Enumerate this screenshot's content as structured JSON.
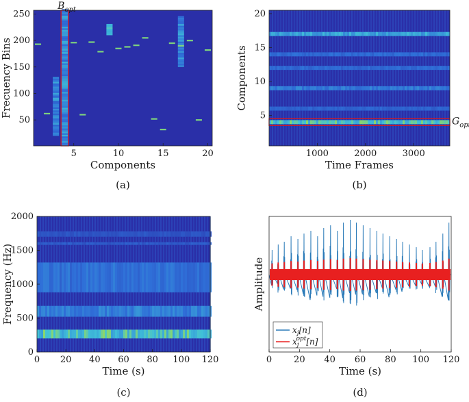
{
  "colors": {
    "heat_bg": "#2a2fa8",
    "heat_mid": "#2f6fd8",
    "heat_hot": "#40c0d8",
    "heat_peak": "#a8e040",
    "highlight": "#e01818",
    "signal_blue": "#2a7ab8",
    "signal_red": "#e82020"
  },
  "chart_data": [
    {
      "type": "heatmap",
      "panel_caption": "(a)",
      "xlabel": "Components",
      "ylabel": "Frecuency Bins",
      "xlim": [
        0.5,
        20.5
      ],
      "ylim": [
        1,
        257
      ],
      "xticks": [
        "5",
        "10",
        "15",
        "20"
      ],
      "yticks": [
        "50",
        "100",
        "150",
        "200",
        "250"
      ],
      "annotation": "B",
      "annotation_sub": "opt",
      "highlight_component": 4,
      "peaks": [
        {
          "component": 1,
          "bin": 193
        },
        {
          "component": 2,
          "bin": 62
        },
        {
          "component": 5,
          "bin": 196
        },
        {
          "component": 6,
          "bin": 60
        },
        {
          "component": 7,
          "bin": 197
        },
        {
          "component": 8,
          "bin": 179
        },
        {
          "component": 10,
          "bin": 185
        },
        {
          "component": 11,
          "bin": 188
        },
        {
          "component": 12,
          "bin": 191
        },
        {
          "component": 13,
          "bin": 205
        },
        {
          "component": 14,
          "bin": 52
        },
        {
          "component": 15,
          "bin": 32
        },
        {
          "component": 16,
          "bin": 195
        },
        {
          "component": 17,
          "bin": 190
        },
        {
          "component": 18,
          "bin": 200
        },
        {
          "component": 19,
          "bin": 50
        },
        {
          "component": 20,
          "bin": 182
        }
      ]
    },
    {
      "type": "heatmap",
      "panel_caption": "(b)",
      "xlabel": "Time Frames",
      "ylabel": "Components",
      "xlim": [
        1,
        3750
      ],
      "ylim": [
        0.5,
        20.5
      ],
      "xticks": [
        "1000",
        "2000",
        "3000"
      ],
      "yticks": [
        "5",
        "10",
        "15",
        "20"
      ],
      "annotation": "G",
      "annotation_sub": "opt",
      "highlight_component": 4,
      "bright_rows": [
        {
          "component": 4,
          "intensity": 0.9
        },
        {
          "component": 17,
          "intensity": 0.75
        },
        {
          "component": 9,
          "intensity": 0.55
        },
        {
          "component": 14,
          "intensity": 0.45
        },
        {
          "component": 12,
          "intensity": 0.45
        },
        {
          "component": 6,
          "intensity": 0.4
        }
      ]
    },
    {
      "type": "heatmap",
      "panel_caption": "(c)",
      "xlabel": "Time (s)",
      "ylabel": "Frequency (Hz)",
      "xlim": [
        0,
        120
      ],
      "ylim": [
        0,
        2000
      ],
      "xticks": [
        "0",
        "20",
        "40",
        "60",
        "80",
        "100",
        "120"
      ],
      "yticks": [
        "0",
        "500",
        "1000",
        "1500",
        "2000"
      ],
      "bright_bands_hz": [
        {
          "from": 200,
          "to": 330,
          "intensity": 0.9
        },
        {
          "from": 520,
          "to": 680,
          "intensity": 0.6
        },
        {
          "from": 880,
          "to": 1320,
          "intensity": 0.5
        },
        {
          "from": 1580,
          "to": 1620,
          "intensity": 0.35
        },
        {
          "from": 1700,
          "to": 1780,
          "intensity": 0.3
        }
      ]
    },
    {
      "type": "line",
      "panel_caption": "(d)",
      "xlabel": "Time (s)",
      "ylabel": "Amplitude",
      "xlim": [
        0,
        120
      ],
      "xticks": [
        "0",
        "20",
        "40",
        "60",
        "80",
        "100",
        "120"
      ],
      "legend_position": "bottom-left",
      "series": [
        {
          "name": "x",
          "name_sub": "j",
          "name_suffix": "[n]",
          "color": "#2a7ab8"
        },
        {
          "name": "x",
          "name_sub": "j",
          "name_sup": "opt",
          "name_suffix": "[n]",
          "color": "#e82020"
        }
      ],
      "beat_times_s": [
        2,
        6,
        10,
        14.5,
        19,
        23,
        27.5,
        32,
        36,
        40.5,
        45,
        49,
        53.5,
        57.5,
        62,
        66.5,
        71,
        75,
        79.5,
        84,
        88,
        92.5,
        97,
        101,
        106,
        110,
        114.5,
        118.5
      ],
      "beat_amplitudes": [
        0.45,
        0.55,
        0.6,
        0.7,
        0.65,
        0.75,
        0.8,
        0.7,
        0.85,
        0.9,
        0.8,
        0.95,
        1.0,
        0.95,
        0.9,
        0.85,
        0.8,
        0.75,
        0.7,
        0.65,
        0.6,
        0.55,
        0.5,
        0.45,
        0.5,
        0.6,
        0.75,
        0.95
      ]
    }
  ]
}
